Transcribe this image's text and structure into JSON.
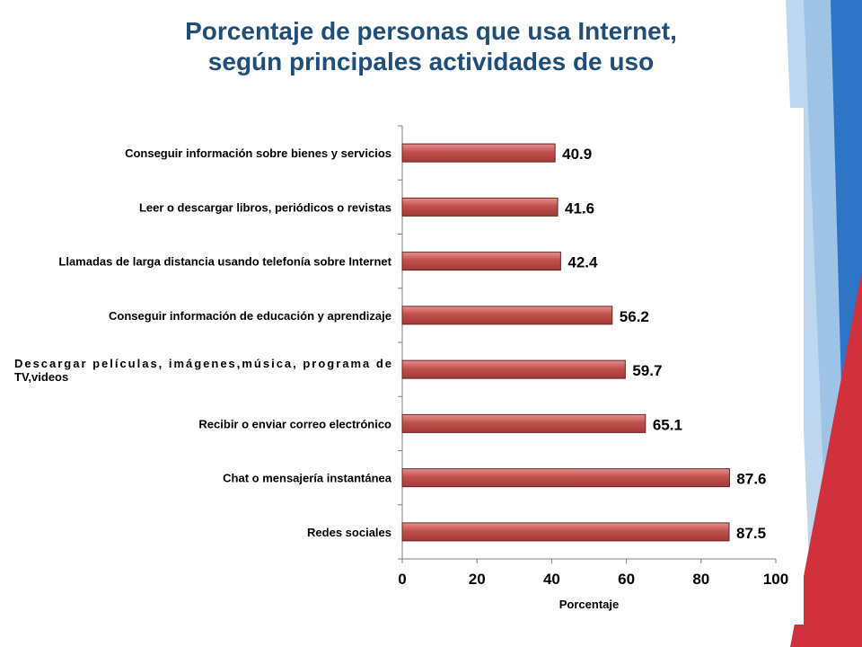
{
  "title_lines": [
    "Porcentaje de personas que usa Internet,",
    "según principales actividades de uso"
  ],
  "colors": {
    "title": "#1f4e79",
    "bar_fill": "#c0504d",
    "bar_stroke": "#632523",
    "deco_blue": "#2e75c8",
    "deco_light": "#9dc3e6",
    "deco_red": "#d0313d"
  },
  "chart_data": {
    "type": "bar",
    "orientation": "horizontal",
    "categories": [
      "Conseguir información sobre bienes y servicios",
      "Leer o descargar libros, periódicos o revistas",
      "Llamadas de larga distancia usando telefonía sobre Internet",
      "Conseguir información de educación y aprendizaje",
      "Descargar películas, imágenes,música, programa de TV,videos",
      "Recibir o enviar correo electrónico",
      "Chat o mensajería instantánea",
      "Redes sociales"
    ],
    "category_lines": [
      [
        "Conseguir información sobre bienes y servicios"
      ],
      [
        "Leer o descargar libros, periódicos o revistas"
      ],
      [
        "Llamadas de larga distancia usando telefonía sobre Internet"
      ],
      [
        "Conseguir información de educación y aprendizaje"
      ],
      [
        "Descargar películas, imágenes,música, programa de",
        "TV,videos"
      ],
      [
        "Recibir o enviar correo electrónico"
      ],
      [
        "Chat o mensajería instantánea"
      ],
      [
        "Redes sociales"
      ]
    ],
    "values": [
      40.9,
      41.6,
      42.4,
      56.2,
      59.7,
      65.1,
      87.6,
      87.5
    ],
    "value_labels": [
      "40.9",
      "41.6",
      "42.4",
      "56.2",
      "59.7",
      "65.1",
      "87.6",
      "87.5"
    ],
    "xlabel": "Porcentaje",
    "ylabel": "",
    "xlim": [
      0,
      100
    ],
    "xticks": [
      0,
      20,
      40,
      60,
      80,
      100
    ],
    "xtick_labels": [
      "0",
      "20",
      "40",
      "60",
      "80",
      "100"
    ],
    "grid": false,
    "legend": "none"
  }
}
